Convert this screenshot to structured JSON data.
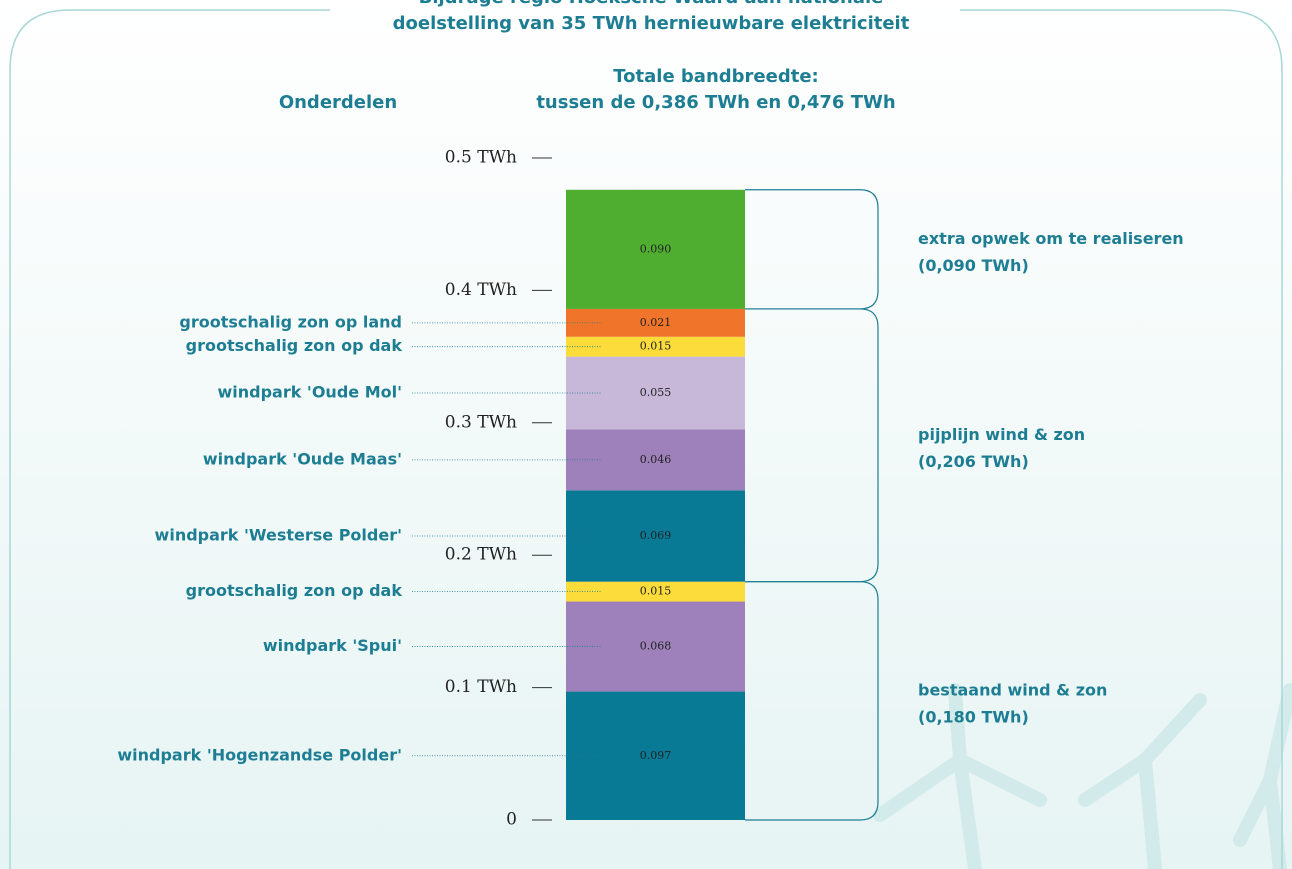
{
  "chart_data": {
    "type": "stacked_bar",
    "title": [
      "Bijdrage regio Hoeksche Waard aan nationale",
      "doelstelling van 35 TWh hernieuwbare elektriciteit"
    ],
    "left_header": "Onderdelen",
    "subtitle": [
      "Totale bandbreedte:",
      "tussen de 0,386 TWh en 0,476 TWh"
    ],
    "categories": [
      "windpark 'Hogenzandse Polder'",
      "windpark 'Spui'",
      "grootschalig zon op dak",
      "windpark 'Westerse Polder'",
      "windpark 'Oude Maas'",
      "windpark 'Oude Mol'",
      "grootschalig zon op dak",
      "grootschalig zon op land",
      null
    ],
    "values": [
      0.097,
      0.068,
      0.015,
      0.069,
      0.046,
      0.055,
      0.015,
      0.021,
      0.09
    ],
    "value_labels": [
      "0.097",
      "0.068",
      "0.015",
      "0.069",
      "0.046",
      "0.055",
      "0.015",
      "0.021",
      "0.090"
    ],
    "colors": [
      "#087a96",
      "#9e80ba",
      "#fcdc3a",
      "#087a96",
      "#9e80ba",
      "#c7b7d9",
      "#fcdc3a",
      "#f0742a",
      "#4fae30"
    ],
    "groups": [
      {
        "name": "bestaand wind & zon",
        "value": 0.18,
        "value_label": "(0,180 TWh)"
      },
      {
        "name": "pijplijn wind & zon",
        "value": 0.206,
        "value_label": "(0,206 TWh)"
      },
      {
        "name": "extra opwek om te realiseren",
        "value": 0.09,
        "value_label": "(0,090 TWh)"
      }
    ],
    "ylim": [
      0,
      0.5
    ],
    "yticks": [
      0,
      {
        "value": 0.1,
        "label": "0.1 TWh"
      },
      {
        "value": 0.2,
        "label": "0.2 TWh"
      },
      {
        "value": 0.3,
        "label": "0.3 TWh"
      },
      {
        "value": 0.4,
        "label": "0.4 TWh"
      },
      {
        "value": 0.5,
        "label": "0.5 TWh"
      }
    ]
  }
}
